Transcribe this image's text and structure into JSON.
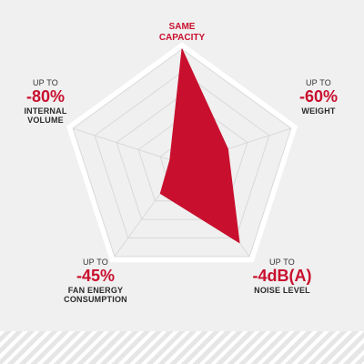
{
  "colors": {
    "fill": "#c8102e",
    "accent": "#c8102e",
    "grid": "#d9d9d9",
    "frame": "#ffffff",
    "background": "#f0f0f0"
  },
  "chart_data": {
    "type": "radar",
    "grid": true,
    "rmax": 1,
    "rings": 5,
    "axes": [
      {
        "id": "capacity",
        "lines": [
          "SAME",
          "CAPACITY"
        ],
        "prefix": "",
        "value_label": "",
        "value": 1.0
      },
      {
        "id": "weight",
        "lines": [
          "WEIGHT"
        ],
        "prefix": "UP TO",
        "value_label": "-60%",
        "value": 0.42
      },
      {
        "id": "noise",
        "lines": [
          "NOISE LEVEL"
        ],
        "prefix": "UP TO",
        "value_label": "-4dB(A)",
        "value": 0.85
      },
      {
        "id": "fan-energy",
        "lines": [
          "FAN ENERGY",
          "CONSUMPTION"
        ],
        "prefix": "UP TO",
        "value_label": "-45%",
        "value": 0.32
      },
      {
        "id": "internal-volume",
        "lines": [
          "INTERNAL",
          "VOLUME"
        ],
        "prefix": "UP TO",
        "value_label": "-80%",
        "value": 0.11
      }
    ]
  }
}
